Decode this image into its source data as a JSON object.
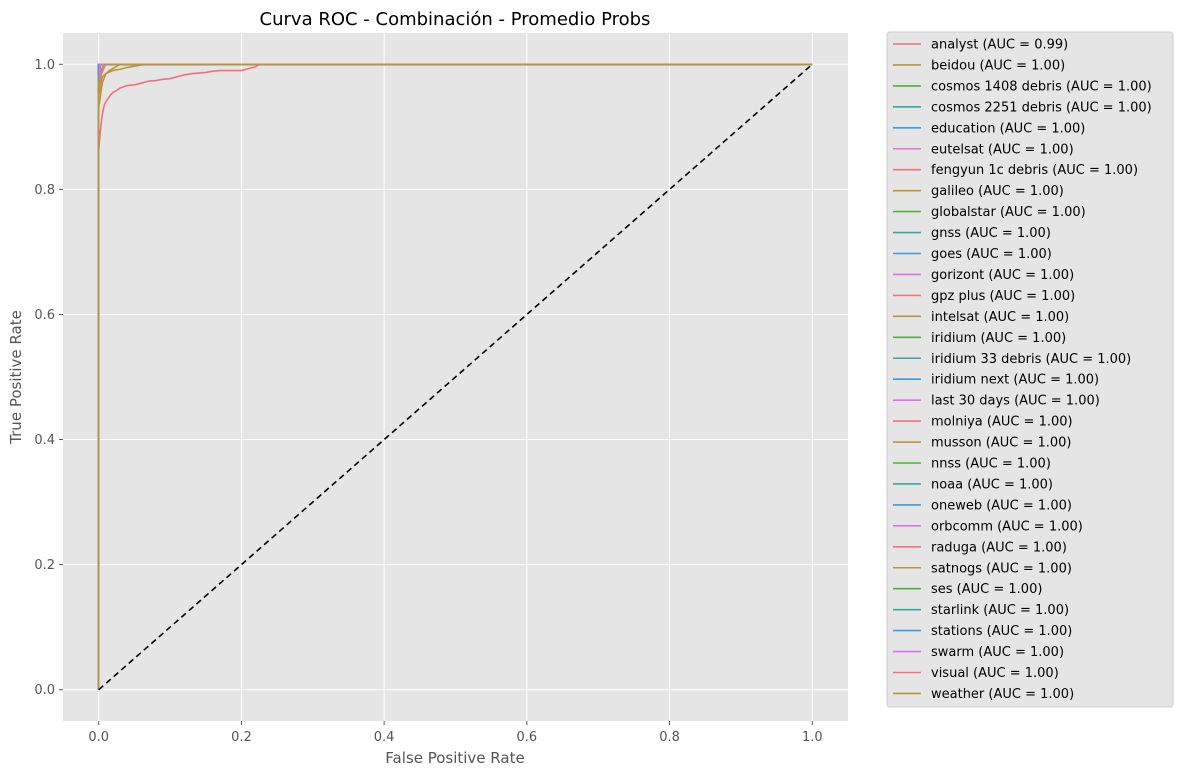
{
  "chart_data": {
    "type": "line",
    "title": "Curva ROC - Combinación - Promedio Probs",
    "xlabel": "False Positive Rate",
    "ylabel": "True Positive Rate",
    "xlim": [
      -0.05,
      1.05
    ],
    "ylim": [
      -0.05,
      1.05
    ],
    "xticks": [
      0.0,
      0.2,
      0.4,
      0.6,
      0.8,
      1.0
    ],
    "yticks": [
      0.0,
      0.2,
      0.4,
      0.6,
      0.8,
      1.0
    ],
    "xtick_labels": [
      "0.0",
      "0.2",
      "0.4",
      "0.6",
      "0.8",
      "1.0"
    ],
    "ytick_labels": [
      "0.0",
      "0.2",
      "0.4",
      "0.6",
      "0.8",
      "1.0"
    ],
    "grid": true,
    "background": "#e5e5e5",
    "legend_position": "outside-right",
    "palette": [
      "#f0707e",
      "#b89737",
      "#4fb13b",
      "#35aa9c",
      "#3b9ae0",
      "#e36ee8"
    ],
    "reference_line": {
      "x": [
        0,
        1
      ],
      "y": [
        0,
        1
      ],
      "style": "dashed",
      "color": "#000000"
    },
    "series": [
      {
        "name": "analyst (AUC = 0.99)",
        "x": [
          0,
          0,
          0.002,
          0.004,
          0.006,
          0.008,
          0.01,
          0.013,
          0.016,
          0.02,
          0.025,
          0.03,
          0.035,
          0.04,
          0.05,
          0.06,
          0.07,
          0.08,
          0.09,
          0.1,
          0.11,
          0.12,
          0.13,
          0.14,
          0.15,
          0.16,
          0.17,
          0.18,
          0.19,
          0.2,
          0.21,
          0.22,
          0.225,
          1.0
        ],
        "y": [
          0,
          0.86,
          0.89,
          0.91,
          0.925,
          0.935,
          0.94,
          0.945,
          0.95,
          0.955,
          0.958,
          0.962,
          0.964,
          0.966,
          0.967,
          0.97,
          0.973,
          0.974,
          0.976,
          0.977,
          0.98,
          0.983,
          0.985,
          0.986,
          0.987,
          0.989,
          0.99,
          0.99,
          0.99,
          0.99,
          0.993,
          0.996,
          1.0,
          1.0
        ]
      },
      {
        "name": "beidou (AUC = 1.00)",
        "x": [
          0,
          0,
          0.005,
          0.01,
          0.02,
          0.03,
          0.04,
          0.05,
          0.06,
          0.07,
          1.0
        ],
        "y": [
          0,
          0.93,
          0.97,
          0.985,
          0.99,
          0.992,
          0.995,
          0.997,
          0.999,
          1.0,
          1.0
        ]
      },
      {
        "name": "cosmos 1408 debris (AUC = 1.00)",
        "x": [
          0,
          0,
          0.002,
          1.0
        ],
        "y": [
          0,
          0.99,
          1.0,
          1.0
        ]
      },
      {
        "name": "cosmos 2251 debris (AUC = 1.00)",
        "x": [
          0,
          0,
          0.003,
          1.0
        ],
        "y": [
          0,
          0.99,
          1.0,
          1.0
        ]
      },
      {
        "name": "education (AUC = 1.00)",
        "x": [
          0,
          0,
          1.0
        ],
        "y": [
          0,
          1.0,
          1.0
        ]
      },
      {
        "name": "eutelsat (AUC = 1.00)",
        "x": [
          0,
          0,
          1.0
        ],
        "y": [
          0,
          1.0,
          1.0
        ]
      },
      {
        "name": "fengyun 1c debris (AUC = 1.00)",
        "x": [
          0,
          0,
          0.004,
          0.01,
          1.0
        ],
        "y": [
          0,
          0.97,
          0.99,
          1.0,
          1.0
        ]
      },
      {
        "name": "galileo (AUC = 1.00)",
        "x": [
          0,
          0,
          1.0
        ],
        "y": [
          0,
          1.0,
          1.0
        ]
      },
      {
        "name": "globalstar (AUC = 1.00)",
        "x": [
          0,
          0,
          1.0
        ],
        "y": [
          0,
          1.0,
          1.0
        ]
      },
      {
        "name": "gnss (AUC = 1.00)",
        "x": [
          0,
          0,
          0.002,
          1.0
        ],
        "y": [
          0,
          0.99,
          1.0,
          1.0
        ]
      },
      {
        "name": "goes (AUC = 1.00)",
        "x": [
          0,
          0,
          1.0
        ],
        "y": [
          0,
          1.0,
          1.0
        ]
      },
      {
        "name": "gorizont (AUC = 1.00)",
        "x": [
          0,
          0,
          1.0
        ],
        "y": [
          0,
          1.0,
          1.0
        ]
      },
      {
        "name": "gpz plus (AUC = 1.00)",
        "x": [
          0,
          0,
          1.0
        ],
        "y": [
          0,
          1.0,
          1.0
        ]
      },
      {
        "name": "intelsat (AUC = 1.00)",
        "x": [
          0,
          0,
          1.0
        ],
        "y": [
          0,
          1.0,
          1.0
        ]
      },
      {
        "name": "iridium (AUC = 1.00)",
        "x": [
          0,
          0,
          1.0
        ],
        "y": [
          0,
          1.0,
          1.0
        ]
      },
      {
        "name": "iridium 33 debris (AUC = 1.00)",
        "x": [
          0,
          0,
          0.003,
          1.0
        ],
        "y": [
          0,
          0.98,
          1.0,
          1.0
        ]
      },
      {
        "name": "iridium next (AUC = 1.00)",
        "x": [
          0,
          0,
          1.0
        ],
        "y": [
          0,
          1.0,
          1.0
        ]
      },
      {
        "name": "last 30 days (AUC = 1.00)",
        "x": [
          0,
          0,
          0.004,
          0.01,
          1.0
        ],
        "y": [
          0,
          0.96,
          0.985,
          1.0,
          1.0
        ]
      },
      {
        "name": "molniya (AUC = 1.00)",
        "x": [
          0,
          0,
          1.0
        ],
        "y": [
          0,
          1.0,
          1.0
        ]
      },
      {
        "name": "musson (AUC = 1.00)",
        "x": [
          0,
          0,
          1.0
        ],
        "y": [
          0,
          1.0,
          1.0
        ]
      },
      {
        "name": "nnss (AUC = 1.00)",
        "x": [
          0,
          0,
          1.0
        ],
        "y": [
          0,
          1.0,
          1.0
        ]
      },
      {
        "name": "noaa (AUC = 1.00)",
        "x": [
          0,
          0,
          1.0
        ],
        "y": [
          0,
          1.0,
          1.0
        ]
      },
      {
        "name": "oneweb (AUC = 1.00)",
        "x": [
          0,
          0,
          1.0
        ],
        "y": [
          0,
          1.0,
          1.0
        ]
      },
      {
        "name": "orbcomm (AUC = 1.00)",
        "x": [
          0,
          0,
          1.0
        ],
        "y": [
          0,
          1.0,
          1.0
        ]
      },
      {
        "name": "raduga (AUC = 1.00)",
        "x": [
          0,
          0,
          1.0
        ],
        "y": [
          0,
          1.0,
          1.0
        ]
      },
      {
        "name": "satnogs (AUC = 1.00)",
        "x": [
          0,
          0,
          0.005,
          0.015,
          0.03,
          1.0
        ],
        "y": [
          0,
          0.95,
          0.98,
          0.99,
          1.0,
          1.0
        ]
      },
      {
        "name": "ses (AUC = 1.00)",
        "x": [
          0,
          0,
          1.0
        ],
        "y": [
          0,
          1.0,
          1.0
        ]
      },
      {
        "name": "starlink (AUC = 1.00)",
        "x": [
          0,
          0,
          0.002,
          1.0
        ],
        "y": [
          0,
          0.995,
          1.0,
          1.0
        ]
      },
      {
        "name": "stations (AUC = 1.00)",
        "x": [
          0,
          0,
          1.0
        ],
        "y": [
          0,
          1.0,
          1.0
        ]
      },
      {
        "name": "swarm (AUC = 1.00)",
        "x": [
          0,
          0,
          0.002,
          1.0
        ],
        "y": [
          0,
          0.97,
          1.0,
          1.0
        ]
      },
      {
        "name": "visual (AUC = 1.00)",
        "x": [
          0,
          0,
          0.003,
          0.008,
          1.0
        ],
        "y": [
          0,
          0.97,
          0.99,
          1.0,
          1.0
        ]
      },
      {
        "name": "weather (AUC = 1.00)",
        "x": [
          0,
          0,
          0.003,
          0.008,
          1.0
        ],
        "y": [
          0,
          0.97,
          0.99,
          1.0,
          1.0
        ]
      }
    ]
  }
}
